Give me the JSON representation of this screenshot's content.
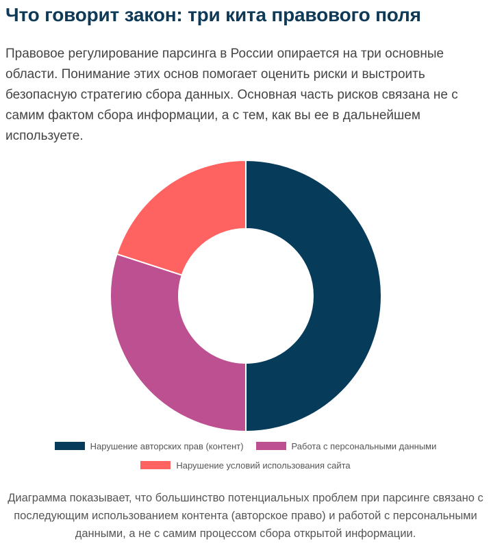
{
  "section": {
    "title": "Что говорит закон: три кита правового поля",
    "intro": "Правовое регулирование парсинга в России опирается на три основные области. Понимание этих основ помогает оценить риски и выстроить безопасную стратегию сбора данных. Основная часть рисков связана не с самим фактом сбора информации, а с тем, как вы ее в дальнейшем используете."
  },
  "chart_data": {
    "type": "pie",
    "variant": "doughnut",
    "start_angle_deg": 0,
    "direction": "clockwise",
    "legend_position": "bottom",
    "labels": [
      "Нарушение авторских прав (контент)",
      "Работа с персональными данными",
      "Нарушение условий использования сайта"
    ],
    "values": [
      50,
      30,
      20
    ],
    "colors": [
      "#073b5a",
      "#bc5090",
      "#ff6361"
    ]
  },
  "caption": "Диаграмма показывает, что большинство потенциальных проблем при парсинге связано с последующим использованием контента (авторское право) и работой с персональными данными, а не с самим процессом сбора открытой информации."
}
